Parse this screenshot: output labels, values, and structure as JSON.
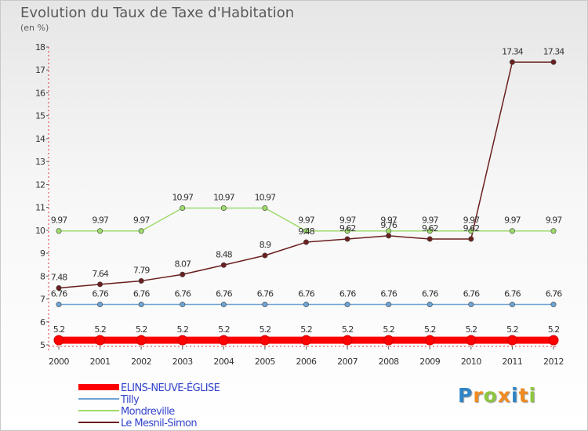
{
  "chart_data": {
    "type": "line",
    "title": "Evolution du Taux de Taxe d'Habitation",
    "subtitle": "(en %)",
    "x": [
      "2000",
      "2001",
      "2002",
      "2003",
      "2004",
      "2005",
      "2006",
      "2007",
      "2008",
      "2009",
      "2010",
      "2011",
      "2012"
    ],
    "ylim": [
      5,
      18
    ],
    "yticks": [
      "5",
      "6",
      "7",
      "8",
      "9",
      "10",
      "11",
      "12",
      "13",
      "14",
      "15",
      "16",
      "17",
      "18"
    ],
    "series": [
      {
        "name": "ELINS-NEUVE-ÉGLISE",
        "color": "#ff0000",
        "values": [
          5.2,
          5.2,
          5.2,
          5.2,
          5.2,
          5.2,
          5.2,
          5.2,
          5.2,
          5.2,
          5.2,
          5.2,
          5.2
        ],
        "labels": [
          "5.2",
          "5.2",
          "5.2",
          "5.2",
          "5.2",
          "5.2",
          "5.2",
          "5.2",
          "5.2",
          "5.2",
          "5.2",
          "5.2",
          "5.2"
        ]
      },
      {
        "name": "Tilly",
        "color": "#6fa4d3",
        "values": [
          6.76,
          6.76,
          6.76,
          6.76,
          6.76,
          6.76,
          6.76,
          6.76,
          6.76,
          6.76,
          6.76,
          6.76,
          6.76
        ],
        "labels": [
          "6.76",
          "6.76",
          "6.76",
          "6.76",
          "6.76",
          "6.76",
          "6.76",
          "6.76",
          "6.76",
          "6.76",
          "6.76",
          "6.76",
          "6.76"
        ]
      },
      {
        "name": "Mondreville",
        "color": "#9ddb6a",
        "values": [
          9.97,
          9.97,
          9.97,
          10.97,
          10.97,
          10.97,
          9.97,
          9.97,
          9.97,
          9.97,
          9.97,
          9.97,
          9.97
        ],
        "labels": [
          "9.97",
          "9.97",
          "9.97",
          "10.97",
          "10.97",
          "10.97",
          "9.97",
          "9.97",
          "9.97",
          "9.97",
          "9.97",
          "9.97",
          "9.97"
        ]
      },
      {
        "name": "Le Mesnil-Simon",
        "color": "#6b1f1f",
        "values": [
          7.48,
          7.64,
          7.79,
          8.07,
          8.48,
          8.9,
          9.48,
          9.62,
          9.76,
          9.62,
          9.62,
          17.34,
          17.34
        ],
        "labels": [
          "7.48",
          "7.64",
          "7.79",
          "8.07",
          "8.48",
          "8.9",
          "9.48",
          "9.62",
          "9.76",
          "9.62",
          "9.62",
          "17.34",
          "17.34"
        ]
      }
    ],
    "legend_position": "bottom-left",
    "grid": false
  },
  "branding": {
    "letters": [
      "P",
      "r",
      "o",
      "x",
      "i",
      "t",
      "i"
    ],
    "colors": [
      "#2f84c7",
      "#f28b1f",
      "#8dc63f",
      "#f28b1f",
      "#2f84c7",
      "#f28b1f",
      "#8dc63f"
    ]
  }
}
